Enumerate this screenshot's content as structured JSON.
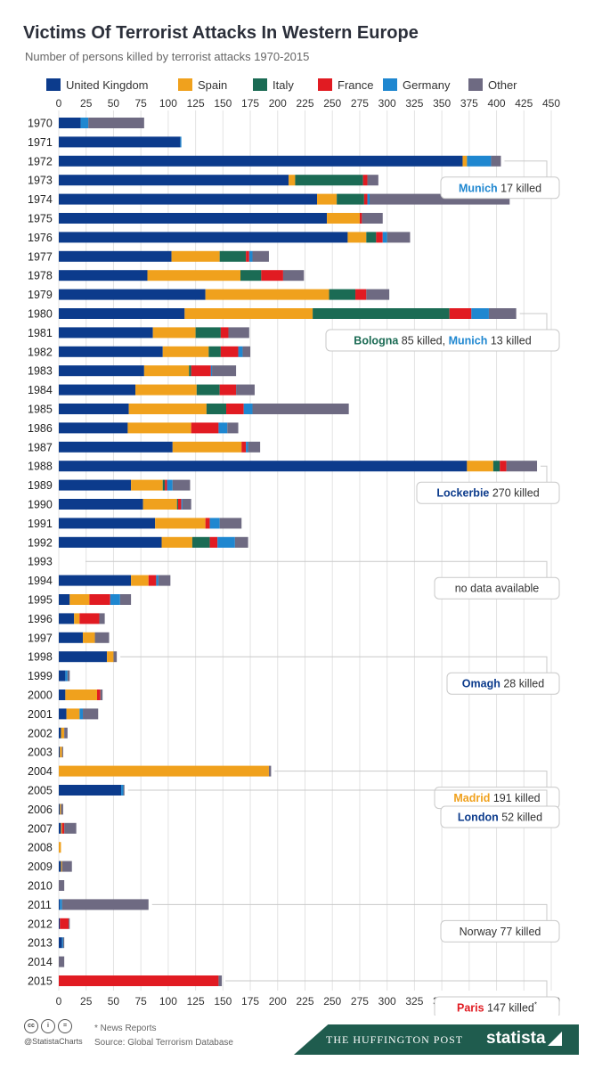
{
  "header": {
    "title": "Victims Of Terrorist Attacks In Western Europe",
    "subtitle": "Number of persons killed by terrorist attacks 1970-2015"
  },
  "colors": {
    "United Kingdom": "#0c3b8c",
    "Spain": "#f0a11d",
    "Italy": "#1b6b54",
    "France": "#e11b22",
    "Germany": "#1f87d0",
    "Other": "#6e6a82"
  },
  "legend": [
    "United Kingdom",
    "Spain",
    "Italy",
    "France",
    "Germany",
    "Other"
  ],
  "chart_data": {
    "type": "bar",
    "orientation": "horizontal",
    "stacked": true,
    "xlim": [
      0,
      450
    ],
    "x_ticks": [
      0,
      25,
      50,
      75,
      100,
      125,
      150,
      175,
      200,
      225,
      250,
      275,
      300,
      325,
      350,
      375,
      400,
      425,
      450
    ],
    "grid": true,
    "legend_position": "top",
    "categories": [
      "1970",
      "1971",
      "1972",
      "1973",
      "1974",
      "1975",
      "1976",
      "1977",
      "1978",
      "1979",
      "1980",
      "1981",
      "1982",
      "1983",
      "1984",
      "1985",
      "1986",
      "1987",
      "1988",
      "1989",
      "1990",
      "1991",
      "1992",
      "1993",
      "1994",
      "1995",
      "1996",
      "1997",
      "1998",
      "1999",
      "2000",
      "2001",
      "2002",
      "2003",
      "2004",
      "2005",
      "2006",
      "2007",
      "2008",
      "2009",
      "2010",
      "2011",
      "2012",
      "2013",
      "2014",
      "2015"
    ],
    "series": [
      {
        "name": "United Kingdom",
        "values": [
          20,
          111,
          369,
          210,
          236,
          245,
          264,
          103,
          81,
          134,
          115,
          86,
          95,
          78,
          70,
          64,
          63,
          104,
          373,
          66,
          77,
          88,
          94,
          0,
          66,
          10,
          14,
          22,
          44,
          6,
          6,
          7,
          2,
          1,
          0,
          57,
          1,
          2,
          0,
          2,
          0,
          1,
          1,
          3,
          0,
          0
        ]
      },
      {
        "name": "Spain",
        "values": [
          0,
          0,
          4,
          6,
          18,
          30,
          17,
          44,
          85,
          113,
          117,
          39,
          42,
          41,
          56,
          71,
          58,
          63,
          24,
          29,
          31,
          46,
          28,
          0,
          16,
          18,
          5,
          11,
          6,
          0,
          29,
          12,
          3,
          2,
          192,
          0,
          1,
          1,
          2,
          1,
          0,
          0,
          0,
          0,
          0,
          0
        ]
      },
      {
        "name": "Italy",
        "values": [
          0,
          0,
          0,
          62,
          25,
          0,
          9,
          24,
          19,
          24,
          125,
          23,
          11,
          2,
          21,
          18,
          0,
          0,
          6,
          2,
          1,
          0,
          16,
          0,
          0,
          0,
          0,
          0,
          0,
          0,
          0,
          0,
          0,
          0,
          0,
          0,
          0,
          0,
          0,
          0,
          0,
          0,
          0,
          0,
          0,
          0
        ]
      },
      {
        "name": "France",
        "values": [
          0,
          0,
          0,
          4,
          3,
          2,
          6,
          3,
          20,
          10,
          20,
          7,
          16,
          18,
          15,
          16,
          25,
          4,
          6,
          2,
          3,
          4,
          7,
          0,
          7,
          19,
          18,
          0,
          0,
          0,
          3,
          0,
          0,
          0,
          0,
          0,
          0,
          2,
          0,
          0,
          0,
          0,
          8,
          0,
          0,
          146
        ]
      },
      {
        "name": "Germany",
        "values": [
          7,
          1,
          22,
          0,
          2,
          0,
          4,
          3,
          0,
          0,
          16,
          0,
          4,
          1,
          0,
          8,
          8,
          2,
          0,
          5,
          1,
          9,
          16,
          0,
          2,
          9,
          0,
          0,
          0,
          2,
          0,
          3,
          0,
          0,
          0,
          2,
          0,
          0,
          0,
          0,
          0,
          2,
          0,
          1,
          0,
          0
        ]
      },
      {
        "name": "Other",
        "values": [
          51,
          0,
          9,
          10,
          128,
          19,
          21,
          15,
          19,
          21,
          25,
          19,
          7,
          22,
          17,
          88,
          10,
          11,
          28,
          16,
          8,
          20,
          12,
          0,
          11,
          10,
          5,
          13,
          3,
          2,
          2,
          14,
          3,
          1,
          2,
          1,
          2,
          11,
          0,
          9,
          5,
          79,
          1,
          1,
          5,
          3
        ]
      }
    ],
    "annotations": [
      {
        "event": "Munich",
        "text": "17 killed",
        "color": "#1f87d0",
        "year": "1972"
      },
      {
        "event": "Bologna",
        "text": "85 killed,",
        "event2": "Munich",
        "text2": "13 killed",
        "color": "#1b6b54",
        "color2": "#1f87d0",
        "year": "1980"
      },
      {
        "event": "Lockerbie",
        "text": "270 killed",
        "color": "#0c3b8c",
        "year": "1988"
      },
      {
        "event": "",
        "text": "no data available",
        "color": "#333333",
        "year": "1993"
      },
      {
        "event": "Omagh",
        "text": "28 killed",
        "color": "#0c3b8c",
        "year": "1998"
      },
      {
        "event": "Madrid",
        "text": "191 killed",
        "color": "#f0a11d",
        "year": "2004"
      },
      {
        "event": "London",
        "text": "52 killed",
        "color": "#0c3b8c",
        "year": "2005"
      },
      {
        "event": "",
        "text": "Norway 77 killed",
        "color": "#333333",
        "year": "2011"
      },
      {
        "event": "Paris",
        "text": "147 killed",
        "sup": "*",
        "color": "#e11b22",
        "year": "2015"
      }
    ]
  },
  "footer": {
    "cc_icons": [
      "cc",
      "i",
      "="
    ],
    "handle": "@StatistaCharts",
    "note": "* News Reports",
    "source": "Source: Global Terrorism Database",
    "publisher": "THE HUFFINGTON POST",
    "brand": "statista"
  }
}
